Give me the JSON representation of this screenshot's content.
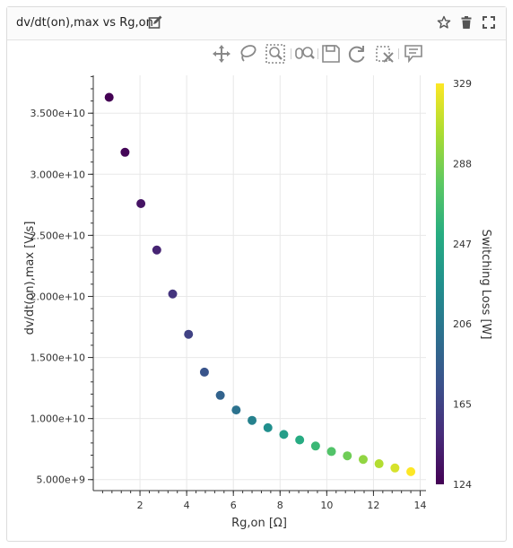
{
  "card": {
    "title": "dv/dt(on),max vs Rg,on",
    "edit_icon": "pencil-edit-icon",
    "header_actions": [
      "star-icon",
      "trash-icon",
      "fullscreen-icon"
    ]
  },
  "toolbar": {
    "tools": [
      {
        "name": "pan-tool",
        "icon": "move-arrows-icon",
        "active": false
      },
      {
        "name": "lasso-select-tool",
        "icon": "lasso-icon",
        "active": false
      },
      {
        "name": "box-zoom-tool",
        "icon": "box-zoom-icon",
        "active": true
      },
      {
        "name": "wheel-zoom-tool",
        "icon": "wheel-zoom-icon",
        "active": false
      },
      {
        "name": "save-tool",
        "icon": "floppy-save-icon",
        "active": false
      },
      {
        "name": "reset-tool",
        "icon": "reset-icon",
        "active": false
      },
      {
        "name": "clear-selection-tool",
        "icon": "clear-icon",
        "active": false
      },
      {
        "name": "hover-tool",
        "icon": "hover-tooltip-icon",
        "active": true
      }
    ]
  },
  "chart_data": {
    "type": "scatter",
    "title": "",
    "xlabel": "Rg,on [Ω]",
    "ylabel": "dv/dt(on),max [V/s]",
    "xlim": [
      0.0,
      14.25
    ],
    "ylim": [
      4100000000.0,
      38100000000.0
    ],
    "x_ticks": [
      2,
      4,
      6,
      8,
      10,
      12,
      14
    ],
    "x_tick_labels": [
      "2",
      "4",
      "6",
      "8",
      "10",
      "12",
      "14"
    ],
    "y_ticks": [
      5000000000.0,
      10000000000.0,
      15000000000.0,
      20000000000.0,
      25000000000.0,
      30000000000.0,
      35000000000.0
    ],
    "y_tick_labels": [
      "5.000e+9",
      "1.000e+10",
      "1.500e+10",
      "2.000e+10",
      "2.500e+10",
      "3.000e+10",
      "3.500e+10"
    ],
    "grid": true,
    "colorbar": {
      "label": "Switching Loss [W]",
      "min": 124,
      "max": 329,
      "ticks": [
        124,
        165,
        206,
        247,
        288,
        329
      ],
      "colormap": "viridis"
    },
    "points": [
      {
        "x": 0.68,
        "y": 36300000000.0,
        "c": 124
      },
      {
        "x": 1.36,
        "y": 31800000000.0,
        "c": 127
      },
      {
        "x": 2.04,
        "y": 27600000000.0,
        "c": 135
      },
      {
        "x": 2.72,
        "y": 23800000000.0,
        "c": 145
      },
      {
        "x": 3.4,
        "y": 20200000000.0,
        "c": 155
      },
      {
        "x": 4.08,
        "y": 16900000000.0,
        "c": 165
      },
      {
        "x": 4.76,
        "y": 13800000000.0,
        "c": 178
      },
      {
        "x": 5.44,
        "y": 11900000000.0,
        "c": 190
      },
      {
        "x": 6.12,
        "y": 10700000000.0,
        "c": 202
      },
      {
        "x": 6.8,
        "y": 9850000000.0,
        "c": 214
      },
      {
        "x": 7.48,
        "y": 9250000000.0,
        "c": 226
      },
      {
        "x": 8.16,
        "y": 8700000000.0,
        "c": 238
      },
      {
        "x": 8.84,
        "y": 8250000000.0,
        "c": 250
      },
      {
        "x": 9.52,
        "y": 7750000000.0,
        "c": 262
      },
      {
        "x": 10.2,
        "y": 7300000000.0,
        "c": 273
      },
      {
        "x": 10.88,
        "y": 6950000000.0,
        "c": 284
      },
      {
        "x": 11.56,
        "y": 6650000000.0,
        "c": 295
      },
      {
        "x": 12.24,
        "y": 6300000000.0,
        "c": 306
      },
      {
        "x": 12.92,
        "y": 5950000000.0,
        "c": 317
      },
      {
        "x": 13.6,
        "y": 5650000000.0,
        "c": 329
      }
    ]
  }
}
